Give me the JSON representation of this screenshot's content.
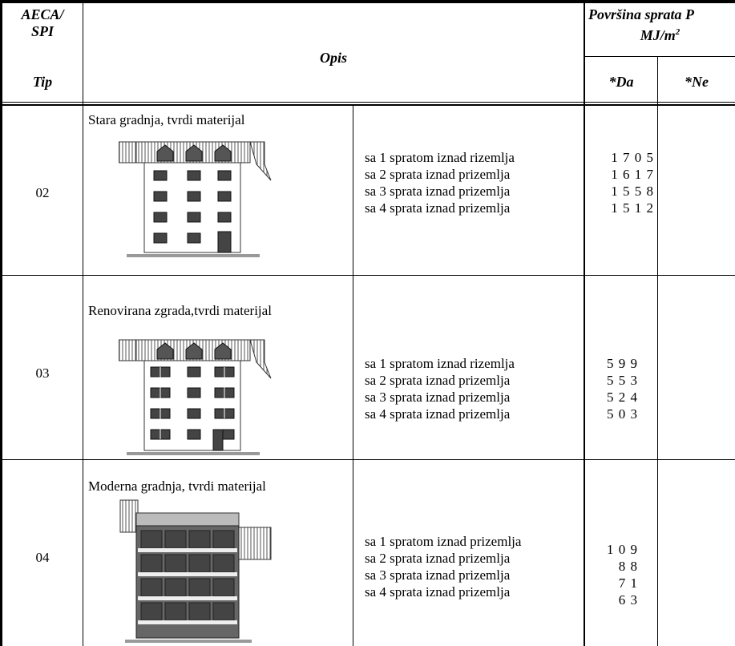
{
  "header": {
    "code": [
      "AECA/",
      "SPI"
    ],
    "tip": "Tip",
    "opis": "Opis",
    "area": "Površina sprata P",
    "unit": "MJ/m",
    "unit_sup": "2",
    "da": "*Da",
    "ne": "*Ne"
  },
  "rows": [
    {
      "tip": "02",
      "title": "Stara gradnja, tvrdi materijal",
      "lines": [
        "sa 1 spratom iznad rizemlja",
        "sa 2 sprata iznad prizemlja",
        "sa 3 sprata iznad prizemlja",
        "sa 4 sprata iznad prizemlja"
      ],
      "da": [
        "1 7 0 5",
        "1 6 1 7",
        "1 5 5 8",
        "1 5 1 2"
      ]
    },
    {
      "tip": "03",
      "title": "Renovirana zgrada,tvrdi materijal",
      "lines": [
        "sa 1 spratom iznad rizemlja",
        "sa 2 sprata iznad prizemlja",
        "sa 3 sprata iznad prizemlja",
        "sa 4 sprata iznad prizemlja"
      ],
      "da": [
        "5 9 9",
        "5 5 3",
        "5 2 4",
        "5 0 3"
      ]
    },
    {
      "tip": "04",
      "title": "Moderna gradnja, tvrdi materijal",
      "lines": [
        "sa 1 spratom iznad prizemlja",
        "sa 2 sprata iznad prizemlja",
        "sa 3 sprata iznad prizemlja",
        "sa 4 sprata iznad prizemlja"
      ],
      "da": [
        "1 0 9",
        "8 8",
        "7 1",
        "6 3"
      ]
    }
  ]
}
